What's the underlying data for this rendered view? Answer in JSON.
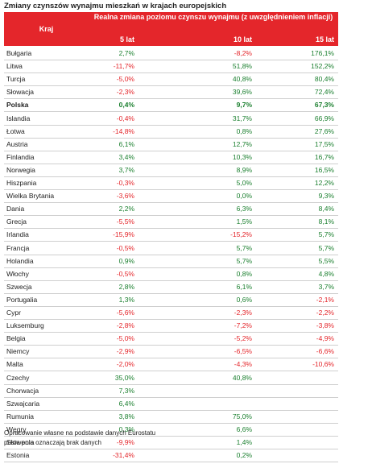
{
  "title": "Zmiany czynszów wynajmu mieszkań w krajach europejskich",
  "header": {
    "kraj": "Kraj",
    "span": "Realna zmiana poziomu czynszu wynajmu (z uwzględnieniem inflacji)",
    "columns": [
      "5 lat",
      "10 lat",
      "15 lat"
    ]
  },
  "colors": {
    "header_bg": "#e4262b",
    "negative": "#e4262b",
    "positive": "#1a7f2e"
  },
  "rows": [
    {
      "country": "Bułgaria",
      "v5": "2,7%",
      "v10": "-8,2%",
      "v15": "176,1%"
    },
    {
      "country": "Litwa",
      "v5": "-11,7%",
      "v10": "51,8%",
      "v15": "152,2%"
    },
    {
      "country": "Turcja",
      "v5": "-5,0%",
      "v10": "40,8%",
      "v15": "80,4%"
    },
    {
      "country": "Słowacja",
      "v5": "-2,3%",
      "v10": "39,6%",
      "v15": "72,4%"
    },
    {
      "country": "Polska",
      "v5": "0,4%",
      "v10": "9,7%",
      "v15": "67,3%",
      "bold": true
    },
    {
      "country": "Islandia",
      "v5": "-0,4%",
      "v10": "31,7%",
      "v15": "66,9%"
    },
    {
      "country": "Łotwa",
      "v5": "-14,8%",
      "v10": "0,8%",
      "v15": "27,6%"
    },
    {
      "country": "Austria",
      "v5": "6,1%",
      "v10": "12,7%",
      "v15": "17,5%"
    },
    {
      "country": "Finlandia",
      "v5": "3,4%",
      "v10": "10,3%",
      "v15": "16,7%"
    },
    {
      "country": "Norwegia",
      "v5": "3,7%",
      "v10": "8,9%",
      "v15": "16,5%"
    },
    {
      "country": "Hiszpania",
      "v5": "-0,3%",
      "v10": "5,0%",
      "v15": "12,2%"
    },
    {
      "country": "Wielka Brytania",
      "v5": "-3,6%",
      "v10": "0,0%",
      "v15": "9,3%"
    },
    {
      "country": "Dania",
      "v5": "2,2%",
      "v10": "6,3%",
      "v15": "8,4%"
    },
    {
      "country": "Grecja",
      "v5": "-5,5%",
      "v10": "1,5%",
      "v15": "8,1%"
    },
    {
      "country": "Irlandia",
      "v5": "-15,9%",
      "v10": "-15,2%",
      "v15": "5,7%"
    },
    {
      "country": "Francja",
      "v5": "-0,5%",
      "v10": "5,7%",
      "v15": "5,7%"
    },
    {
      "country": "Holandia",
      "v5": "0,9%",
      "v10": "5,7%",
      "v15": "5,5%"
    },
    {
      "country": "Włochy",
      "v5": "-0,5%",
      "v10": "0,8%",
      "v15": "4,8%"
    },
    {
      "country": "Szwecja",
      "v5": "2,8%",
      "v10": "6,1%",
      "v15": "3,7%"
    },
    {
      "country": "Portugalia",
      "v5": "1,3%",
      "v10": "0,6%",
      "v15": "-2,1%"
    },
    {
      "country": "Cypr",
      "v5": "-5,6%",
      "v10": "-2,3%",
      "v15": "-2,2%"
    },
    {
      "country": "Luksemburg",
      "v5": "-2,8%",
      "v10": "-7,2%",
      "v15": "-3,8%"
    },
    {
      "country": "Belgia",
      "v5": "-5,0%",
      "v10": "-5,2%",
      "v15": "-4,9%"
    },
    {
      "country": "Niemcy",
      "v5": "-2,9%",
      "v10": "-6,5%",
      "v15": "-6,6%"
    },
    {
      "country": "Malta",
      "v5": "-2,0%",
      "v10": "-4,3%",
      "v15": "-10,6%"
    },
    {
      "country": "Czechy",
      "v5": "35,0%",
      "v10": "40,8%",
      "v15": ""
    },
    {
      "country": "Chorwacja",
      "v5": "7,3%",
      "v10": "",
      "v15": ""
    },
    {
      "country": "Szwajcaria",
      "v5": "6,4%",
      "v10": "",
      "v15": ""
    },
    {
      "country": "Rumunia",
      "v5": "3,8%",
      "v10": "75,0%",
      "v15": ""
    },
    {
      "country": "Węgry",
      "v5": "0,3%",
      "v10": "6,6%",
      "v15": ""
    },
    {
      "country": "Słowenia",
      "v5": "-9,9%",
      "v10": "1,4%",
      "v15": ""
    },
    {
      "country": "Estonia",
      "v5": "-31,4%",
      "v10": "0,2%",
      "v15": ""
    }
  ],
  "footnotes": [
    "Opracowanie własne na podstawie danych Eurostatu",
    "puste pola oznaczają brak danych"
  ]
}
